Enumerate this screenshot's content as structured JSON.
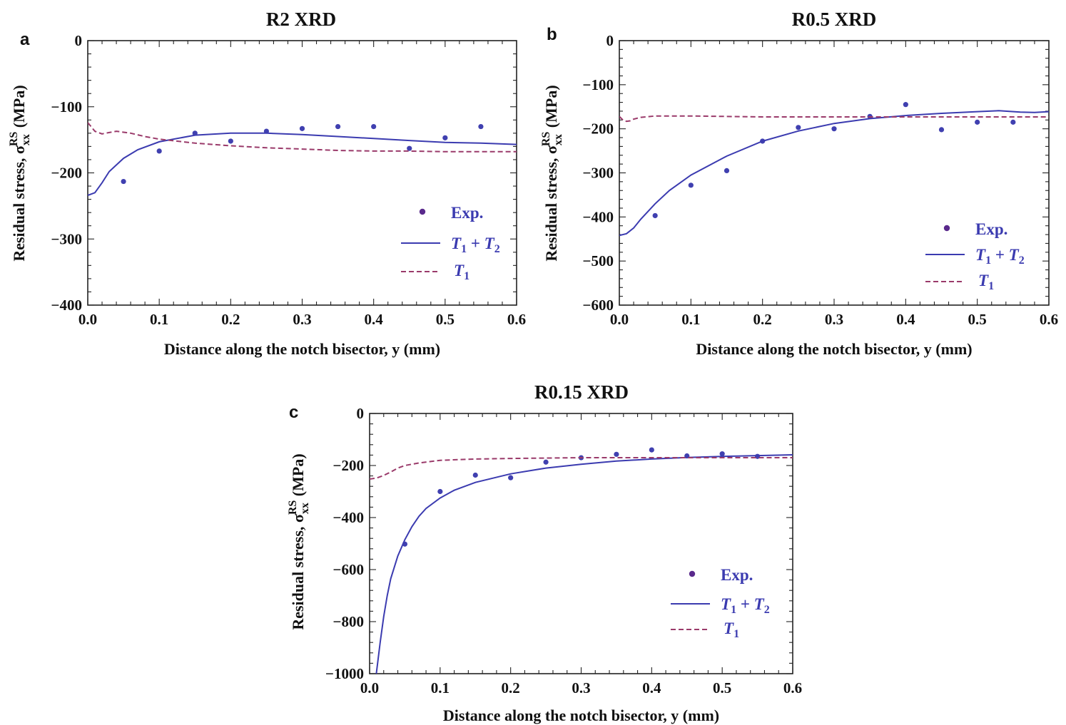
{
  "colors": {
    "exp": "#4040b0",
    "exp_legend": "#5a2a8c",
    "t1t2": "#3b3bb0",
    "t1": "#9a3a6a",
    "legend_text": "#3b3bb0"
  },
  "chart_data": [
    {
      "panel": "a",
      "type": "line",
      "title": "R2 XRD",
      "xlabel": "Distance along the notch bisector, y (mm)",
      "ylabel": "Residual stress, σxx RS (MPa)",
      "xlim": [
        0,
        0.6
      ],
      "ylim": [
        -400,
        0
      ],
      "xticks": [
        0.0,
        0.1,
        0.2,
        0.3,
        0.4,
        0.5,
        0.6
      ],
      "xtick_labels": [
        "0.0",
        "0.1",
        "0.2",
        "0.3",
        "0.4",
        "0.5",
        "0.6"
      ],
      "yticks": [
        0,
        -100,
        -200,
        -300,
        -400
      ],
      "ytick_labels": [
        "0",
        "−100",
        "−200",
        "−300",
        "−400"
      ],
      "legend_position": "lower-right",
      "legend": {
        "exp": "Exp.",
        "t1t2": [
          "T",
          "1",
          " + ",
          "T",
          "2"
        ],
        "t1": [
          "T",
          "1"
        ]
      },
      "series": [
        {
          "name": "Exp.",
          "style": "points",
          "x": [
            0.05,
            0.1,
            0.15,
            0.2,
            0.25,
            0.3,
            0.35,
            0.4,
            0.45,
            0.5,
            0.55
          ],
          "y": [
            -213,
            -167,
            -140,
            -152,
            -137,
            -133,
            -130,
            -130,
            -163,
            -147,
            -130
          ]
        },
        {
          "name": "T1 + T2",
          "style": "solid",
          "x": [
            0,
            0.01,
            0.02,
            0.03,
            0.05,
            0.07,
            0.1,
            0.15,
            0.2,
            0.25,
            0.3,
            0.35,
            0.4,
            0.45,
            0.5,
            0.55,
            0.6
          ],
          "y": [
            -234,
            -230,
            -215,
            -198,
            -178,
            -165,
            -153,
            -143,
            -140,
            -140,
            -142,
            -145,
            -148,
            -151,
            -154,
            -155,
            -157
          ]
        },
        {
          "name": "T1",
          "style": "dashed",
          "x": [
            0,
            0.01,
            0.02,
            0.03,
            0.04,
            0.06,
            0.08,
            0.1,
            0.15,
            0.2,
            0.25,
            0.3,
            0.35,
            0.4,
            0.45,
            0.5,
            0.55,
            0.6
          ],
          "y": [
            -124,
            -137,
            -141,
            -139,
            -137,
            -140,
            -145,
            -149,
            -155,
            -159,
            -162,
            -164,
            -166,
            -167,
            -167,
            -168,
            -168,
            -168
          ]
        }
      ]
    },
    {
      "panel": "b",
      "type": "line",
      "title": "R0.5 XRD",
      "xlabel": "Distance along the notch bisector, y (mm)",
      "ylabel": "Residual stress, σxx RS (MPa)",
      "xlim": [
        0,
        0.6
      ],
      "ylim": [
        -600,
        0
      ],
      "xticks": [
        0.0,
        0.1,
        0.2,
        0.3,
        0.4,
        0.5,
        0.6
      ],
      "xtick_labels": [
        "0.0",
        "0.1",
        "0.2",
        "0.3",
        "0.4",
        "0.5",
        "0.6"
      ],
      "yticks": [
        0,
        -100,
        -200,
        -300,
        -400,
        -500,
        -600
      ],
      "ytick_labels": [
        "0",
        "−100",
        "−200",
        "−300",
        "−400",
        "−500",
        "−600"
      ],
      "legend_position": "lower-right",
      "legend": {
        "exp": "Exp.",
        "t1t2": [
          "T",
          "1",
          " + ",
          "T",
          "2"
        ],
        "t1": [
          "T",
          "1"
        ]
      },
      "series": [
        {
          "name": "Exp.",
          "style": "points",
          "x": [
            0.05,
            0.1,
            0.15,
            0.2,
            0.25,
            0.3,
            0.35,
            0.4,
            0.45,
            0.5,
            0.55
          ],
          "y": [
            -397,
            -328,
            -295,
            -228,
            -197,
            -200,
            -172,
            -145,
            -202,
            -185,
            -185
          ]
        },
        {
          "name": "T1 + T2",
          "style": "solid",
          "x": [
            0,
            0.01,
            0.02,
            0.03,
            0.05,
            0.07,
            0.1,
            0.15,
            0.2,
            0.25,
            0.3,
            0.35,
            0.4,
            0.45,
            0.5,
            0.53,
            0.56,
            0.58,
            0.6
          ],
          "y": [
            -442,
            -438,
            -425,
            -405,
            -370,
            -340,
            -305,
            -262,
            -228,
            -205,
            -188,
            -177,
            -170,
            -165,
            -161,
            -159,
            -162,
            -163,
            -161
          ]
        },
        {
          "name": "T1",
          "style": "dashed",
          "x": [
            0,
            0.005,
            0.01,
            0.015,
            0.02,
            0.03,
            0.05,
            0.1,
            0.2,
            0.3,
            0.4,
            0.5,
            0.6
          ],
          "y": [
            -172,
            -180,
            -183,
            -182,
            -178,
            -174,
            -171,
            -171,
            -173,
            -173,
            -173,
            -173,
            -173
          ]
        }
      ]
    },
    {
      "panel": "c",
      "type": "line",
      "title": "R0.15 XRD",
      "xlabel": "Distance along the notch bisector, y (mm)",
      "ylabel": "Residual stress, σxx RS (MPa)",
      "xlim": [
        0,
        0.6
      ],
      "ylim": [
        -1000,
        0
      ],
      "xticks": [
        0.0,
        0.1,
        0.2,
        0.3,
        0.4,
        0.5,
        0.6
      ],
      "xtick_labels": [
        "0.0",
        "0.1",
        "0.2",
        "0.3",
        "0.4",
        "0.5",
        "0.6"
      ],
      "yticks": [
        0,
        -200,
        -400,
        -600,
        -800,
        -1000
      ],
      "ytick_labels": [
        "0",
        "−200",
        "−400",
        "−600",
        "−800",
        "−1000"
      ],
      "legend_position": "lower-right",
      "legend": {
        "exp": "Exp.",
        "t1t2": [
          "T",
          "1",
          " + ",
          "T",
          "2"
        ],
        "t1": [
          "T",
          "1"
        ]
      },
      "series": [
        {
          "name": "Exp.",
          "style": "points",
          "x": [
            0.05,
            0.1,
            0.15,
            0.2,
            0.25,
            0.3,
            0.35,
            0.4,
            0.45,
            0.5,
            0.55
          ],
          "y": [
            -502,
            -300,
            -237,
            -247,
            -187,
            -170,
            -157,
            -140,
            -163,
            -155,
            -165
          ]
        },
        {
          "name": "T1 + T2",
          "style": "solid",
          "x": [
            0.0095,
            0.012,
            0.015,
            0.02,
            0.025,
            0.03,
            0.04,
            0.05,
            0.06,
            0.07,
            0.08,
            0.1,
            0.12,
            0.15,
            0.2,
            0.25,
            0.3,
            0.35,
            0.4,
            0.45,
            0.5,
            0.55,
            0.6
          ],
          "y": [
            -1000,
            -945,
            -880,
            -780,
            -700,
            -635,
            -548,
            -485,
            -435,
            -395,
            -365,
            -325,
            -295,
            -265,
            -232,
            -210,
            -195,
            -183,
            -175,
            -169,
            -165,
            -162,
            -159
          ]
        },
        {
          "name": "T1",
          "style": "dashed",
          "x": [
            0,
            0.01,
            0.02,
            0.03,
            0.04,
            0.05,
            0.07,
            0.1,
            0.15,
            0.2,
            0.3,
            0.4,
            0.5,
            0.6
          ],
          "y": [
            -252,
            -248,
            -238,
            -225,
            -210,
            -200,
            -190,
            -180,
            -175,
            -173,
            -170,
            -170,
            -170,
            -170
          ]
        }
      ]
    }
  ]
}
